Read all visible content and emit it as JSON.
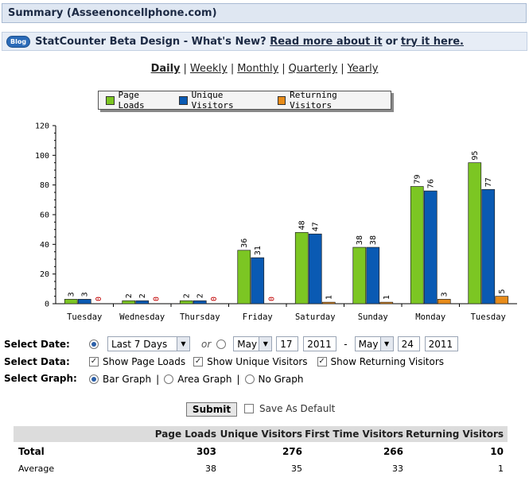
{
  "summary": {
    "title": "Summary (Asseenoncellphone.com)"
  },
  "blog_bar": {
    "badge": "Blog",
    "text": "StatCounter Beta Design - What's New?",
    "read_more": "Read more about it",
    "or": "or",
    "try_it": "try it here."
  },
  "period_nav": {
    "items": [
      "Daily",
      "Weekly",
      "Monthly",
      "Quarterly",
      "Yearly"
    ],
    "active": "Daily",
    "separator": "|"
  },
  "legend": {
    "items": [
      {
        "label": "Page Loads",
        "color": "#7cc623"
      },
      {
        "label": "Unique Visitors",
        "color": "#0a5ab3"
      },
      {
        "label": "Returning Visitors",
        "color": "#e88c1a"
      }
    ]
  },
  "chart_data": {
    "type": "bar",
    "categories": [
      "Tuesday",
      "Wednesday",
      "Thursday",
      "Friday",
      "Saturday",
      "Sunday",
      "Monday",
      "Tuesday"
    ],
    "series": [
      {
        "name": "Page Loads",
        "color": "#7cc623",
        "values": [
          3,
          2,
          2,
          36,
          48,
          38,
          79,
          95
        ]
      },
      {
        "name": "Unique Visitors",
        "color": "#0a5ab3",
        "values": [
          3,
          2,
          2,
          31,
          47,
          38,
          76,
          77
        ]
      },
      {
        "name": "Returning Visitors",
        "color": "#e88c1a",
        "values": [
          0,
          0,
          0,
          0,
          1,
          1,
          3,
          5
        ]
      }
    ],
    "yticks": [
      0,
      20,
      40,
      60,
      80,
      100,
      120
    ],
    "ylim": [
      0,
      120
    ],
    "grid": false,
    "legend_position": "top-center"
  },
  "form": {
    "select_date_label": "Select Date:",
    "select_data_label": "Select Data:",
    "select_graph_label": "Select Graph:",
    "date_range": "Last 7 Days",
    "or": "or",
    "from_month": "May",
    "from_day": "17",
    "from_year": "2011",
    "dash": "-",
    "to_month": "May",
    "to_day": "24",
    "to_year": "2011",
    "show_page_loads": "Show Page Loads",
    "show_unique_visitors": "Show Unique Visitors",
    "show_returning_visitors": "Show Returning Visitors",
    "bar_graph": "Bar Graph",
    "area_graph": "Area Graph",
    "no_graph": "No Graph",
    "separator": "|",
    "submit": "Submit",
    "save_default": "Save As Default"
  },
  "stats": {
    "headers": [
      "Page Loads",
      "Unique Visitors",
      "First Time Visitors",
      "Returning Visitors"
    ],
    "rows": [
      {
        "label": "Total",
        "values": [
          "303",
          "276",
          "266",
          "10"
        ]
      },
      {
        "label": "Average",
        "values": [
          "38",
          "35",
          "33",
          "1"
        ]
      }
    ]
  }
}
